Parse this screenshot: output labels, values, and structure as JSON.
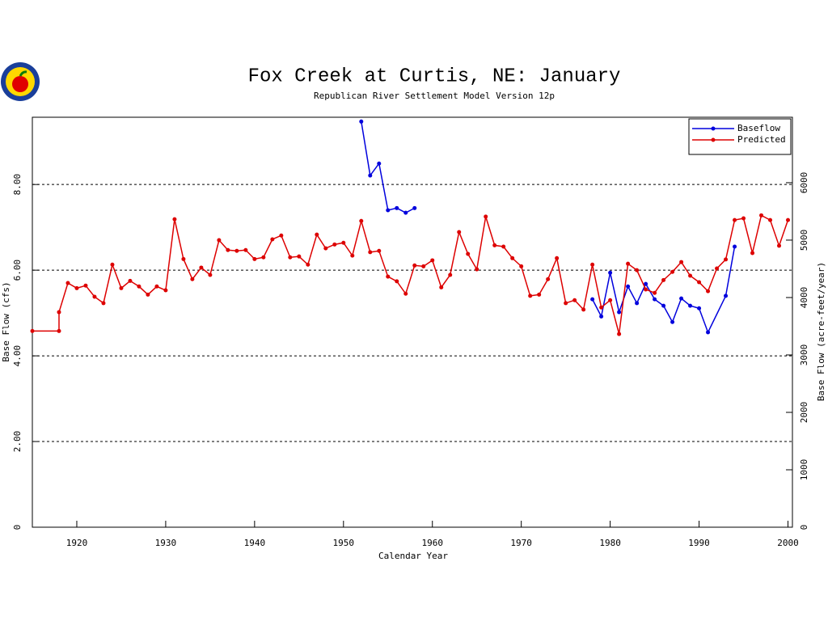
{
  "chart_data": {
    "type": "line",
    "title": "Fox Creek at Curtis, NE: January",
    "subtitle": "Republican River Settlement Model Version 12p",
    "xlabel": "Calendar Year",
    "ylabel": "Base Flow (cfs)",
    "y2label": "Base Flow (acre-feet/year)",
    "xlim": [
      1915,
      2000.5
    ],
    "xticks": [
      1920,
      1930,
      1940,
      1950,
      1960,
      1970,
      1980,
      1990,
      2000
    ],
    "ylim": [
      0,
      9.57
    ],
    "yticks": [
      0,
      {
        "value": 2,
        "label": "2.00"
      },
      {
        "value": 4,
        "label": "4.00"
      },
      {
        "value": 6,
        "label": "6.00"
      },
      {
        "value": 8,
        "label": "8.00"
      }
    ],
    "y2lim": [
      0,
      7140
    ],
    "y2ticks": [
      0,
      1000,
      2000,
      3000,
      4000,
      5000,
      6000
    ],
    "grid": true,
    "legend": "upper right",
    "series": [
      {
        "name": "Baseflow",
        "color": "#0000dd",
        "x": [
          1952,
          1953,
          1954,
          1955,
          1956,
          1957,
          1958,
          1959,
          1978,
          1979,
          1980,
          1981,
          1982,
          1983,
          1984,
          1985,
          1986,
          1987,
          1988,
          1989,
          1990,
          1991,
          1993,
          1994
        ],
        "values": [
          9.47,
          8.21,
          8.49,
          7.4,
          7.45,
          7.34,
          7.45,
          null,
          5.32,
          4.92,
          5.94,
          5.02,
          5.62,
          5.23,
          5.68,
          5.32,
          5.17,
          4.79,
          5.34,
          5.17,
          5.11,
          4.55,
          5.4,
          6.55
        ]
      },
      {
        "name": "Predicted",
        "color": "#dd0000",
        "x": [
          1915,
          1918,
          1918,
          1919,
          1920,
          1921,
          1922,
          1923,
          1924,
          1925,
          1926,
          1927,
          1928,
          1929,
          1930,
          1931,
          1932,
          1933,
          1934,
          1935,
          1936,
          1937,
          1938,
          1939,
          1940,
          1941,
          1942,
          1943,
          1944,
          1945,
          1946,
          1947,
          1948,
          1949,
          1950,
          1951,
          1952,
          1953,
          1954,
          1955,
          1956,
          1957,
          1958,
          1959,
          1960,
          1961,
          1962,
          1963,
          1964,
          1965,
          1966,
          1967,
          1968,
          1969,
          1970,
          1971,
          1972,
          1973,
          1974,
          1975,
          1976,
          1977,
          1978,
          1979,
          1980,
          1981,
          1982,
          1983,
          1984,
          1985,
          1986,
          1987,
          1988,
          1989,
          1990,
          1991,
          1992,
          1993,
          1994,
          1995,
          1996,
          1997,
          1998,
          1999,
          2000
        ],
        "values": [
          4.58,
          4.58,
          5.02,
          5.7,
          5.58,
          5.64,
          5.38,
          5.23,
          6.13,
          5.58,
          5.75,
          5.62,
          5.43,
          5.62,
          5.53,
          7.19,
          6.26,
          5.79,
          6.06,
          5.89,
          6.7,
          6.47,
          6.45,
          6.47,
          6.26,
          6.3,
          6.72,
          6.81,
          6.3,
          6.32,
          6.13,
          6.83,
          6.51,
          6.6,
          6.64,
          6.34,
          7.15,
          6.42,
          6.45,
          5.85,
          5.74,
          5.45,
          6.11,
          6.09,
          6.23,
          5.6,
          5.89,
          6.89,
          6.38,
          6.02,
          7.25,
          6.58,
          6.55,
          6.28,
          6.09,
          5.4,
          5.43,
          5.79,
          6.28,
          5.23,
          5.3,
          5.08,
          6.13,
          5.13,
          5.3,
          4.51,
          6.15,
          6.0,
          5.55,
          5.47,
          5.77,
          5.96,
          6.19,
          5.87,
          5.72,
          5.51,
          6.04,
          6.25,
          7.17,
          7.21,
          6.4,
          7.28,
          7.17,
          6.57,
          7.17
        ]
      }
    ]
  }
}
